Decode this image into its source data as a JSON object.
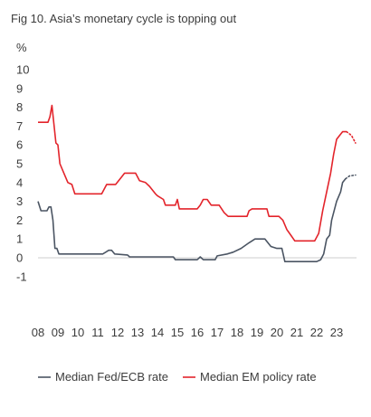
{
  "chart_data": {
    "type": "line",
    "title": "Fig 10. Asia’s monetary cycle is topping out",
    "y_unit": "%",
    "ylim": [
      -1,
      10
    ],
    "y_ticks": [
      "10",
      "9",
      "8",
      "7",
      "6",
      "5",
      "4",
      "3",
      "2",
      "1",
      "0",
      "-1"
    ],
    "x_tick_labels": [
      "08",
      "09",
      "10",
      "11",
      "12",
      "13",
      "14",
      "15",
      "16",
      "17",
      "18",
      "19",
      "20",
      "21",
      "22",
      "23"
    ],
    "x_range": [
      2008.0,
      2024.0
    ],
    "grid": false,
    "legend_position": "bottom",
    "series": [
      {
        "name": "Median Fed/ECB rate",
        "color": "#4b5563",
        "values": [
          [
            2008.0,
            3.0
          ],
          [
            2008.15,
            2.5
          ],
          [
            2008.45,
            2.5
          ],
          [
            2008.55,
            2.7
          ],
          [
            2008.65,
            2.7
          ],
          [
            2008.75,
            2.0
          ],
          [
            2008.85,
            0.5
          ],
          [
            2008.95,
            0.5
          ],
          [
            2009.05,
            0.2
          ],
          [
            2010.5,
            0.2
          ],
          [
            2011.25,
            0.2
          ],
          [
            2011.4,
            0.3
          ],
          [
            2011.55,
            0.4
          ],
          [
            2011.7,
            0.4
          ],
          [
            2011.85,
            0.2
          ],
          [
            2012.5,
            0.15
          ],
          [
            2012.6,
            0.05
          ],
          [
            2014.8,
            0.05
          ],
          [
            2014.9,
            -0.1
          ],
          [
            2016.0,
            -0.1
          ],
          [
            2016.15,
            0.05
          ],
          [
            2016.3,
            -0.1
          ],
          [
            2016.9,
            -0.1
          ],
          [
            2017.0,
            0.1
          ],
          [
            2017.5,
            0.2
          ],
          [
            2017.8,
            0.3
          ],
          [
            2018.2,
            0.5
          ],
          [
            2018.6,
            0.8
          ],
          [
            2018.9,
            1.0
          ],
          [
            2019.4,
            1.0
          ],
          [
            2019.7,
            0.6
          ],
          [
            2020.0,
            0.5
          ],
          [
            2020.25,
            0.5
          ],
          [
            2020.4,
            -0.2
          ],
          [
            2022.0,
            -0.2
          ],
          [
            2022.2,
            -0.1
          ],
          [
            2022.35,
            0.2
          ],
          [
            2022.5,
            1.0
          ],
          [
            2022.65,
            1.2
          ],
          [
            2022.75,
            2.0
          ],
          [
            2023.0,
            3.0
          ],
          [
            2023.2,
            3.5
          ],
          [
            2023.3,
            4.0
          ],
          [
            2023.45,
            4.2
          ]
        ],
        "forecast": [
          [
            2023.45,
            4.2
          ],
          [
            2023.65,
            4.35
          ],
          [
            2023.95,
            4.4
          ]
        ]
      },
      {
        "name": "Median EM policy rate",
        "color": "#e3242b",
        "values": [
          [
            2008.0,
            7.2
          ],
          [
            2008.5,
            7.2
          ],
          [
            2008.6,
            7.5
          ],
          [
            2008.7,
            8.1
          ],
          [
            2008.8,
            7.1
          ],
          [
            2008.9,
            6.1
          ],
          [
            2009.0,
            6.0
          ],
          [
            2009.1,
            5.0
          ],
          [
            2009.3,
            4.5
          ],
          [
            2009.5,
            4.0
          ],
          [
            2009.7,
            3.9
          ],
          [
            2009.85,
            3.4
          ],
          [
            2011.2,
            3.4
          ],
          [
            2011.45,
            3.9
          ],
          [
            2011.9,
            3.9
          ],
          [
            2012.2,
            4.3
          ],
          [
            2012.35,
            4.5
          ],
          [
            2012.9,
            4.5
          ],
          [
            2013.1,
            4.1
          ],
          [
            2013.4,
            4.0
          ],
          [
            2013.6,
            3.8
          ],
          [
            2013.9,
            3.4
          ],
          [
            2014.0,
            3.3
          ],
          [
            2014.3,
            3.1
          ],
          [
            2014.4,
            2.8
          ],
          [
            2014.9,
            2.8
          ],
          [
            2015.0,
            3.1
          ],
          [
            2015.1,
            2.6
          ],
          [
            2016.0,
            2.6
          ],
          [
            2016.15,
            2.8
          ],
          [
            2016.3,
            3.1
          ],
          [
            2016.5,
            3.1
          ],
          [
            2016.7,
            2.8
          ],
          [
            2017.1,
            2.8
          ],
          [
            2017.35,
            2.4
          ],
          [
            2017.55,
            2.2
          ],
          [
            2018.5,
            2.2
          ],
          [
            2018.6,
            2.5
          ],
          [
            2018.75,
            2.6
          ],
          [
            2019.5,
            2.6
          ],
          [
            2019.6,
            2.2
          ],
          [
            2020.1,
            2.2
          ],
          [
            2020.3,
            2.0
          ],
          [
            2020.5,
            1.5
          ],
          [
            2020.7,
            1.2
          ],
          [
            2020.9,
            0.9
          ],
          [
            2021.9,
            0.9
          ],
          [
            2022.1,
            1.3
          ],
          [
            2022.3,
            2.5
          ],
          [
            2022.5,
            3.5
          ],
          [
            2022.7,
            4.5
          ],
          [
            2022.85,
            5.5
          ],
          [
            2023.0,
            6.3
          ],
          [
            2023.15,
            6.5
          ],
          [
            2023.3,
            6.7
          ],
          [
            2023.5,
            6.7
          ]
        ],
        "forecast": [
          [
            2023.5,
            6.7
          ],
          [
            2023.75,
            6.5
          ],
          [
            2023.95,
            6.1
          ]
        ]
      }
    ]
  }
}
